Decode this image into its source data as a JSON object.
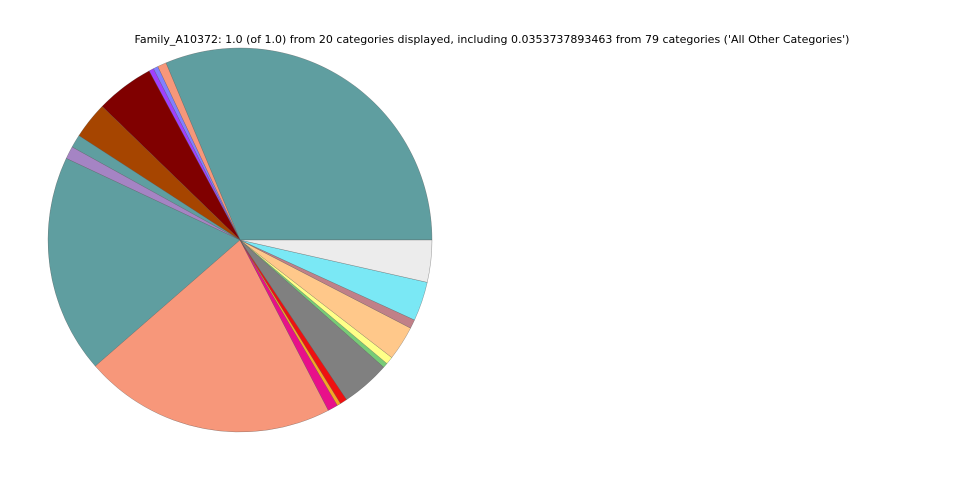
{
  "chart_data": {
    "type": "pie",
    "title": "Family_A10372: 1.0 (of 1.0) from 20 categories displayed, including 0.0353737893463 from 79 categories ('All Other Categories')",
    "values": [
      0.313,
      0.0075,
      0.004,
      0.004,
      0.049,
      0.031,
      0.011,
      0.0106,
      0.184,
      0.212,
      0.0086,
      0.003,
      0.006,
      0.041,
      0.004,
      0.0064,
      0.029,
      0.0075,
      0.033,
      0.0354
    ],
    "colors": [
      "#5f9ea0",
      "#f7977a",
      "#8080ff",
      "#a040ff",
      "#800000",
      "#a64500",
      "#5f9ea0",
      "#a584c4",
      "#5f9ea0",
      "#f7977a",
      "#e8108a",
      "#f5a623",
      "#ee1111",
      "#808080",
      "#77cc77",
      "#ffff88",
      "#ffc88a",
      "#c08088",
      "#7ae8f5",
      "#ececec"
    ]
  }
}
